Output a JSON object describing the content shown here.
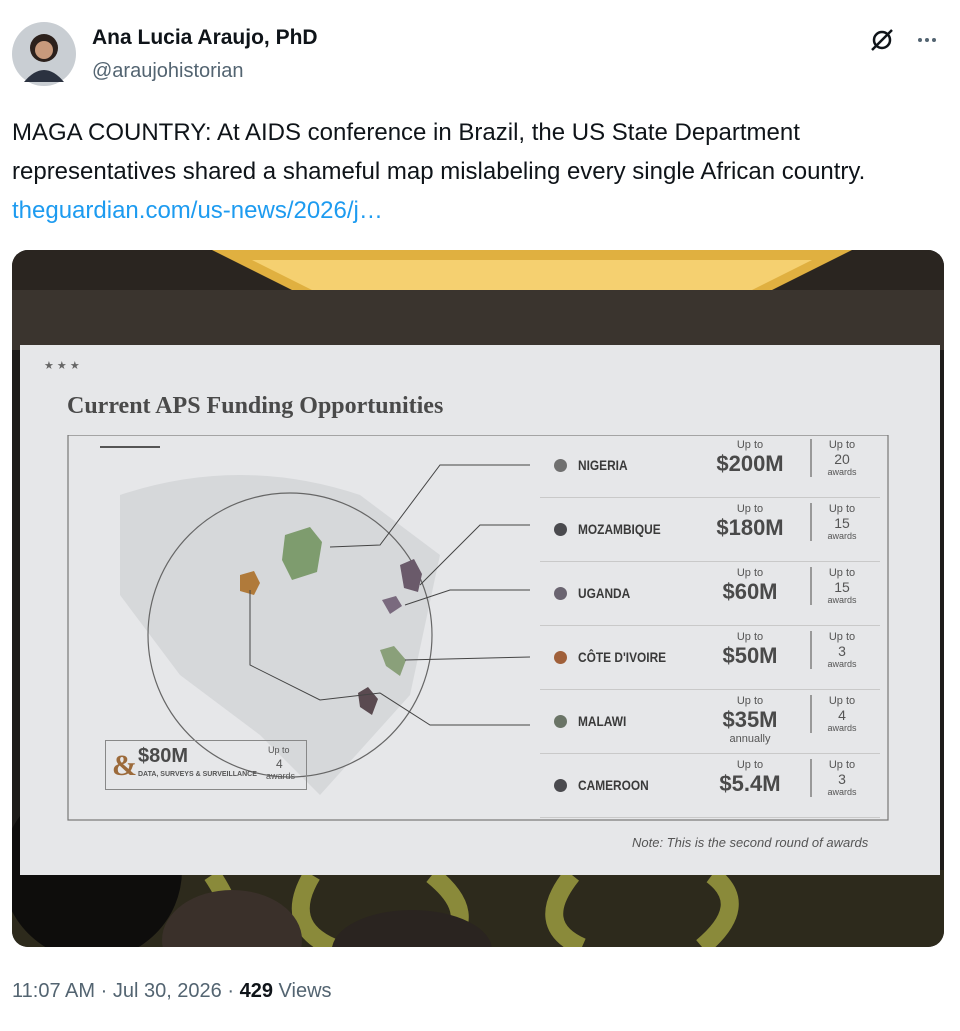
{
  "post": {
    "author": "Ana Lucia Araujo, PhD",
    "handle": "@araujohistorian",
    "text": "MAGA COUNTRY: At AIDS conference in Brazil, the US State Department representatives shared a shameful map mislabeling every single African country.",
    "link": "theguardian.com/us-news/2026/j…",
    "time": "11:07 AM",
    "separator": "·",
    "date": "Jul 30, 2026",
    "views": 429,
    "views_label": "Views"
  },
  "slide": {
    "stars": "★ ★ ★",
    "title": "Current APS Funding Opportunities",
    "rows": [
      {
        "country": "NIGERIA",
        "up_to": "Up to",
        "amount": "$200M",
        "awards_up_to": "Up to",
        "awards": "20",
        "awards_label": "awards"
      },
      {
        "country": "MOZAMBIQUE",
        "up_to": "Up to",
        "amount": "$180M",
        "awards_up_to": "Up to",
        "awards": "15",
        "awards_label": "awards"
      },
      {
        "country": "UGANDA",
        "up_to": "Up to",
        "amount": "$60M",
        "awards_up_to": "Up to",
        "awards": "15",
        "awards_label": "awards"
      },
      {
        "country": "CÔTE D'IVOIRE",
        "up_to": "Up to",
        "amount": "$50M",
        "awards_up_to": "Up to",
        "awards": "3",
        "awards_label": "awards"
      },
      {
        "country": "MALAWI",
        "up_to": "Up to",
        "amount": "$35M",
        "amount_note": "annually",
        "awards_up_to": "Up to",
        "awards": "4",
        "awards_label": "awards"
      },
      {
        "country": "CAMEROON",
        "up_to": "Up to",
        "amount": "$5.4M",
        "awards_up_to": "Up to",
        "awards": "3",
        "awards_label": "awards"
      }
    ],
    "extra": {
      "symbol": "&",
      "amount": "$80M",
      "label": "DATA, SURVEYS & SURVEILLANCE",
      "up_to": "Up to",
      "awards": "4",
      "awards_label": "awards"
    },
    "note": "Note: This is the second round of awards"
  }
}
